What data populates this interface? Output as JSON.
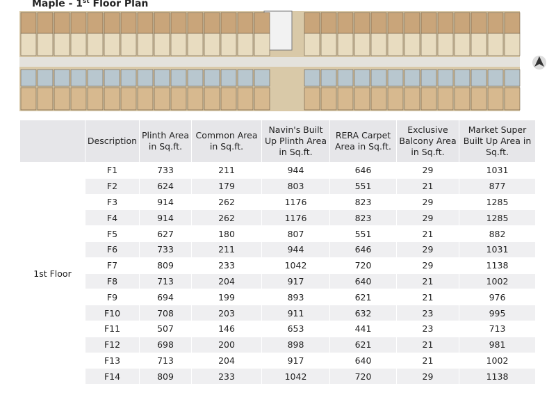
{
  "title": {
    "main": "Maple - 1",
    "sup": "st",
    "rest": " Floor Plan"
  },
  "table": {
    "headers": [
      "Description",
      "Plinth Area in Sq.ft.",
      "Common Area in Sq.ft.",
      "Navin's Built Up Plinth Area in Sq.ft.",
      "RERA Carpet Area in Sq.ft.",
      "Exclusive Balcony Area in Sq.ft.",
      "Market Super Built Up Area in Sq.ft."
    ],
    "group": "1st Floor",
    "rows": [
      [
        "F1",
        733,
        211,
        944,
        646,
        29,
        1031
      ],
      [
        "F2",
        624,
        179,
        803,
        551,
        21,
        877
      ],
      [
        "F3",
        914,
        262,
        1176,
        823,
        29,
        1285
      ],
      [
        "F4",
        914,
        262,
        1176,
        823,
        29,
        1285
      ],
      [
        "F5",
        627,
        180,
        807,
        551,
        21,
        882
      ],
      [
        "F6",
        733,
        211,
        944,
        646,
        29,
        1031
      ],
      [
        "F7",
        809,
        233,
        1042,
        720,
        29,
        1138
      ],
      [
        "F8",
        713,
        204,
        917,
        640,
        21,
        1002
      ],
      [
        "F9",
        694,
        199,
        893,
        621,
        21,
        976
      ],
      [
        "F10",
        708,
        203,
        911,
        632,
        23,
        995
      ],
      [
        "F11",
        507,
        146,
        653,
        441,
        23,
        713
      ],
      [
        "F12",
        698,
        200,
        898,
        621,
        21,
        981
      ],
      [
        "F13",
        713,
        204,
        917,
        640,
        21,
        1002
      ],
      [
        "F14",
        809,
        233,
        1042,
        720,
        29,
        1138
      ]
    ]
  }
}
